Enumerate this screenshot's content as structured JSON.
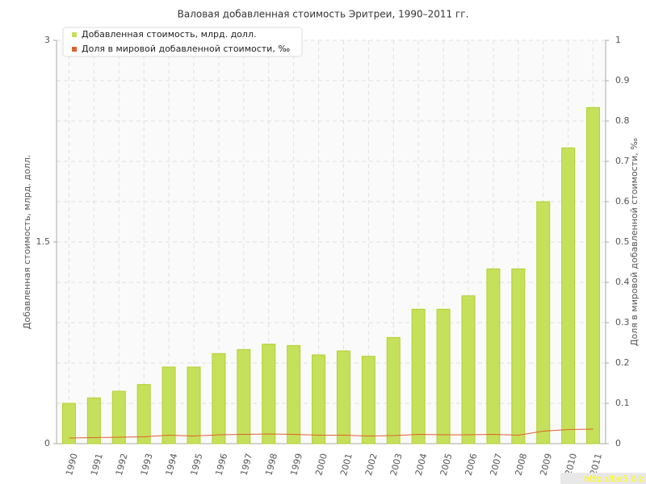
{
  "chart_data": {
    "type": "bar_line",
    "title": "Валовая добавленная стоимость Эритреи, 1990–2011 гг.",
    "y_label": "Добавленная стоимость, млрд. долл.",
    "y2_label": "Доля в мировой добавленной стоимости, ‰",
    "watermark": "http://be5.biz",
    "categories": [
      "1990",
      "1991",
      "1992",
      "1993",
      "1994",
      "1995",
      "1996",
      "1997",
      "1998",
      "1999",
      "2000",
      "2001",
      "2002",
      "2003",
      "2004",
      "2005",
      "2006",
      "2007",
      "2008",
      "2009",
      "2010",
      "2011"
    ],
    "series": [
      {
        "name": "Добавленная стоимость, млрд. долл.",
        "type": "bar",
        "color": "#c5e05a",
        "values": [
          0.3,
          0.34,
          0.39,
          0.44,
          0.57,
          0.57,
          0.67,
          0.7,
          0.74,
          0.73,
          0.66,
          0.69,
          0.65,
          0.79,
          1.0,
          1.0,
          1.1,
          1.3,
          1.3,
          1.8,
          2.2,
          2.5
        ]
      },
      {
        "name": "Доля в мировой добавленной стоимости, ‰",
        "type": "line",
        "axis": "y2",
        "color": "#e0602e",
        "values": [
          0.014,
          0.015,
          0.016,
          0.017,
          0.021,
          0.019,
          0.022,
          0.023,
          0.024,
          0.023,
          0.021,
          0.021,
          0.019,
          0.02,
          0.023,
          0.022,
          0.022,
          0.023,
          0.021,
          0.031,
          0.035,
          0.036
        ]
      }
    ],
    "ylim": [
      0,
      3
    ],
    "yticks": [
      0,
      1.5,
      3
    ],
    "y2lim": [
      0,
      1
    ],
    "y2ticks": [
      0,
      0.1,
      0.2,
      0.3,
      0.4,
      0.5,
      0.6,
      0.7,
      0.8,
      0.9,
      1
    ],
    "grid": true,
    "legend": "top-left"
  }
}
